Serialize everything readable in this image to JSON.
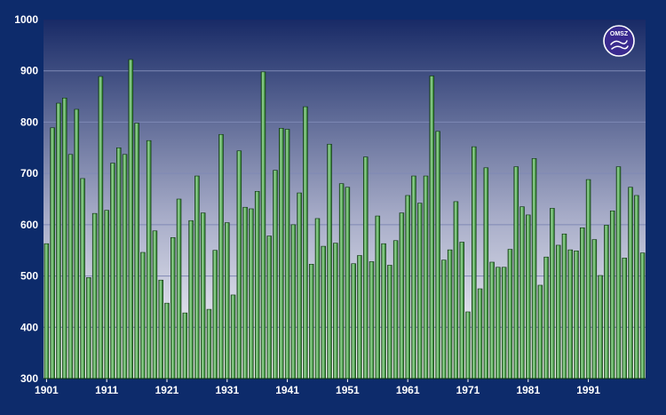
{
  "chart_data": {
    "type": "bar",
    "title": "",
    "xlabel": "",
    "ylabel": "",
    "x": [
      1901,
      1902,
      1903,
      1904,
      1905,
      1906,
      1907,
      1908,
      1909,
      1910,
      1911,
      1912,
      1913,
      1914,
      1915,
      1916,
      1917,
      1918,
      1919,
      1920,
      1921,
      1922,
      1923,
      1924,
      1925,
      1926,
      1927,
      1928,
      1929,
      1930,
      1931,
      1932,
      1933,
      1934,
      1935,
      1936,
      1937,
      1938,
      1939,
      1940,
      1941,
      1942,
      1943,
      1944,
      1945,
      1946,
      1947,
      1948,
      1949,
      1950,
      1951,
      1952,
      1953,
      1954,
      1955,
      1956,
      1957,
      1958,
      1959,
      1960,
      1961,
      1962,
      1963,
      1964,
      1965,
      1966,
      1967,
      1968,
      1969,
      1970,
      1971,
      1972,
      1973,
      1974,
      1975,
      1976,
      1977,
      1978,
      1979,
      1980,
      1981,
      1982,
      1983,
      1984,
      1985,
      1986,
      1987,
      1988,
      1989,
      1990,
      1991,
      1992,
      1993,
      1994,
      1995,
      1996,
      1997,
      1998,
      1999,
      2000
    ],
    "values": [
      563,
      789,
      837,
      847,
      737,
      825,
      690,
      497,
      622,
      889,
      628,
      720,
      750,
      737,
      922,
      798,
      546,
      764,
      588,
      492,
      447,
      575,
      650,
      428,
      608,
      695,
      623,
      435,
      550,
      776,
      604,
      463,
      744,
      634,
      631,
      665,
      898,
      578,
      706,
      788,
      786,
      600,
      662,
      830,
      523,
      612,
      558,
      757,
      564,
      680,
      673,
      524,
      540,
      732,
      528,
      617,
      563,
      521,
      569,
      623,
      657,
      695,
      642,
      695,
      890,
      782,
      531,
      551,
      645,
      566,
      430,
      752,
      475,
      711,
      527,
      517,
      517,
      552,
      713,
      635,
      619,
      729,
      482,
      537,
      632,
      560,
      582,
      551,
      549,
      594,
      688,
      571,
      501,
      599,
      627,
      713,
      535,
      673,
      657,
      545
    ],
    "ylim": [
      300,
      1000
    ],
    "yticks": [
      300,
      400,
      500,
      600,
      700,
      800,
      900,
      1000
    ],
    "xtick_labels": [
      "1901",
      "1911",
      "1921",
      "1931",
      "1941",
      "1951",
      "1961",
      "1971",
      "1981",
      "1991"
    ],
    "grid": true,
    "colors": {
      "frame": "#0d2b6b",
      "plot_top": "#182a66",
      "plot_bottom": "#ffffff",
      "bar_light": "#98d898",
      "bar_mid": "#4f9e4f",
      "bar_dark": "#1c5a1c",
      "bar_edge": "#0c330c",
      "gridline": "#7f89b5"
    }
  },
  "logo": {
    "text": "OMSZ",
    "icon": "omsz-logo-icon"
  }
}
